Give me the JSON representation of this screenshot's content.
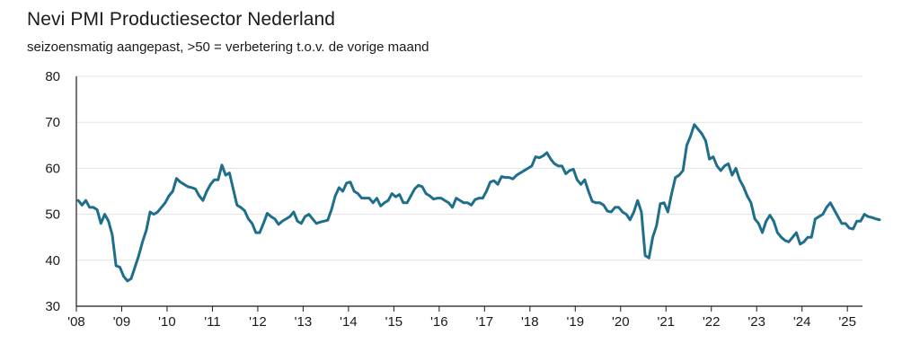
{
  "header": {
    "title": "Nevi PMI Productiesector Nederland",
    "subtitle": "seizoensmatig aangepast, >50 = verbetering t.o.v. de vorige maand"
  },
  "colors": {
    "line": "#1f6e8c",
    "grid": "#e3e3e3",
    "axis": "#1a1a1a"
  },
  "chart_data": {
    "type": "line",
    "title": "Nevi PMI Productiesector Nederland",
    "subtitle": "seizoensmatig aangepast, >50 = verbetering t.o.v. de vorige maand",
    "xlabel": "",
    "ylabel": "",
    "ylim": [
      30,
      80
    ],
    "xlim": [
      "2008-01",
      "2025-05"
    ],
    "y_ticks": [
      30,
      40,
      50,
      60,
      70,
      80
    ],
    "x_ticks": [
      "'08",
      "'09",
      "'10",
      "'11",
      "'12",
      "'13",
      "'14",
      "'15",
      "'16",
      "'17",
      "'18",
      "'19",
      "'20",
      "'21",
      "'22",
      "'23",
      "'24",
      "'25"
    ],
    "grid": true,
    "legend": "none",
    "series": [
      {
        "start": "2008-01",
        "frequency": "monthly",
        "values": [
          53.0,
          52.0,
          53.0,
          51.5,
          51.5,
          51.0,
          48.0,
          50.0,
          48.5,
          45.5,
          38.8,
          38.5,
          36.5,
          35.5,
          36.0,
          38.5,
          41.0,
          44.0,
          46.5,
          50.5,
          50.0,
          50.5,
          51.5,
          52.5,
          54.0,
          55.0,
          57.8,
          57.0,
          56.5,
          56.0,
          55.8,
          55.5,
          54.0,
          53.0,
          55.0,
          56.5,
          57.5,
          57.5,
          60.7,
          58.5,
          59.0,
          55.5,
          52.0,
          51.5,
          50.8,
          49.0,
          48.0,
          46.0,
          46.0,
          48.0,
          50.2,
          49.5,
          49.0,
          47.8,
          48.5,
          49.0,
          49.5,
          50.5,
          48.5,
          48.0,
          49.5,
          50.0,
          49.0,
          48.0,
          48.3,
          48.5,
          48.7,
          51.0,
          54.0,
          55.8,
          55.0,
          56.8,
          57.0,
          55.0,
          54.5,
          53.5,
          53.5,
          53.5,
          52.5,
          53.5,
          51.8,
          52.5,
          53.0,
          54.5,
          53.8,
          54.3,
          52.5,
          52.5,
          54.0,
          55.5,
          56.3,
          56.0,
          54.5,
          54.0,
          53.3,
          53.5,
          53.5,
          53.0,
          52.5,
          51.5,
          53.5,
          53.0,
          52.5,
          52.5,
          52.0,
          53.2,
          53.5,
          53.5,
          55.0,
          57.0,
          57.3,
          56.5,
          58.2,
          58.0,
          58.0,
          57.7,
          58.5,
          59.0,
          59.5,
          60.0,
          60.5,
          62.5,
          62.3,
          62.7,
          63.4,
          62.0,
          61.0,
          60.5,
          60.5,
          58.8,
          59.5,
          59.8,
          57.5,
          56.5,
          57.5,
          55.0,
          52.8,
          52.5,
          52.5,
          52.0,
          50.7,
          50.5,
          51.5,
          51.5,
          50.5,
          50.0,
          48.8,
          50.5,
          53.0,
          50.5,
          41.0,
          40.5,
          45.0,
          47.5,
          52.3,
          52.5,
          50.5,
          54.5,
          58.0,
          58.5,
          59.5,
          65.0,
          67.0,
          69.5,
          68.5,
          67.5,
          66.0,
          62.0,
          62.5,
          60.5,
          59.5,
          60.5,
          61.0,
          58.5,
          60.0,
          57.5,
          56.0,
          54.0,
          52.5,
          49.0,
          48.0,
          46.0,
          48.5,
          49.8,
          48.5,
          46.0,
          45.0,
          44.3,
          44.0,
          45.0,
          46.0,
          43.5,
          44.0,
          45.0,
          45.0,
          49.0,
          49.5,
          50.0,
          51.5,
          52.5,
          51.0,
          49.5,
          48.0,
          48.0,
          47.0,
          46.8,
          48.5,
          48.5,
          50.0,
          49.5,
          49.3,
          49.0,
          48.8
        ]
      }
    ]
  }
}
